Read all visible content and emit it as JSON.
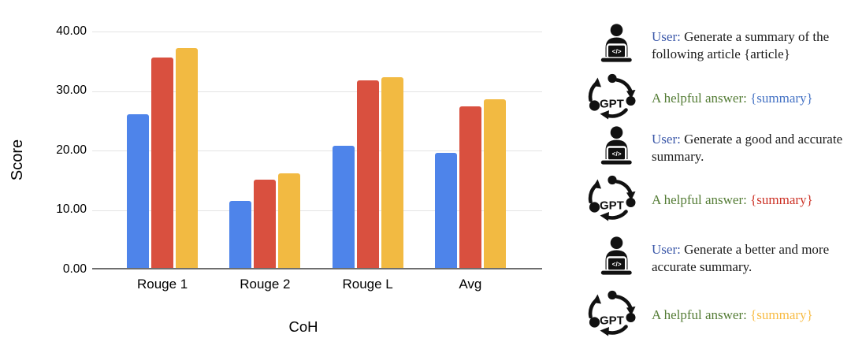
{
  "chart_data": {
    "type": "bar",
    "title": "",
    "xlabel": "CoH",
    "ylabel": "Score",
    "categories": [
      "Rouge 1",
      "Rouge 2",
      "Rouge L",
      "Avg"
    ],
    "series": [
      {
        "name": "blue",
        "color": "#4E84EA",
        "values": [
          25.9,
          11.3,
          20.6,
          19.3
        ]
      },
      {
        "name": "red",
        "color": "#D9503F",
        "values": [
          35.4,
          14.8,
          31.5,
          27.2
        ]
      },
      {
        "name": "yellow",
        "color": "#F2BA42",
        "values": [
          36.9,
          15.9,
          32.0,
          28.3
        ]
      }
    ],
    "ylim": [
      0,
      40
    ],
    "yticks": [
      "40.00",
      "30.00",
      "20.00",
      "10.00",
      "0.00"
    ],
    "grid": true,
    "legend": "none",
    "gridline_color": "#e4e4e4",
    "baseline_color": "#6e6e6e"
  },
  "conversation": {
    "rows": [
      {
        "speaker": "user",
        "icon": "user-laptop-icon",
        "prefix": "User:",
        "text": "Generate a summary of the following article {article}",
        "text_color": "#1b1b1b"
      },
      {
        "speaker": "gpt",
        "icon": "gpt-cycle-icon",
        "prefix": "A helpful answer:",
        "text": "{summary}",
        "text_color": "#4472C4"
      },
      {
        "speaker": "user",
        "icon": "user-laptop-icon",
        "prefix": "User:",
        "text": "Generate a good and accurate summary.",
        "text_color": "#1b1b1b"
      },
      {
        "speaker": "gpt",
        "icon": "gpt-cycle-icon",
        "prefix": "A helpful answer:",
        "text": "{summary}",
        "text_color": "#CC3125"
      },
      {
        "speaker": "user",
        "icon": "user-laptop-icon",
        "prefix": "User:",
        "text": "Generate a better and more accurate summary.",
        "text_color": "#1b1b1b"
      },
      {
        "speaker": "gpt",
        "icon": "gpt-cycle-icon",
        "prefix": "A helpful answer:",
        "text": "{summary}",
        "text_color": "#F8BC45"
      }
    ],
    "colors": {
      "user_prefix": "#3A57A8",
      "gpt_prefix": "#547C35"
    },
    "icon_labels": {
      "gpt_text": "GPT",
      "user_laptop_glyph": "</>"
    }
  }
}
